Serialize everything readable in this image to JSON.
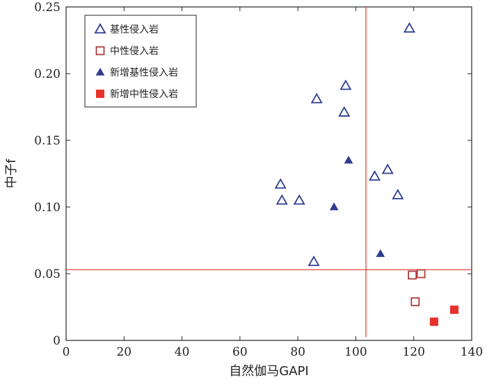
{
  "chart_data": {
    "type": "scatter",
    "xlabel": "自然伽马GAPI",
    "ylabel": "中子f",
    "xlim": [
      0,
      140
    ],
    "ylim": [
      0,
      0.25
    ],
    "x_ticks": [
      "0",
      "20",
      "40",
      "60",
      "80",
      "100",
      "120",
      "140"
    ],
    "y_ticks": [
      "0",
      "0.05",
      "0.10",
      "0.15",
      "0.20",
      "0.25"
    ],
    "grid": false,
    "legend_position": "top-left",
    "reference_lines": {
      "x": 103.5,
      "y": 0.053,
      "color": "#e8433b"
    },
    "series": [
      {
        "name": "基性侵入岩",
        "marker": "triangle-open",
        "color": "#2e3d8f",
        "points": [
          {
            "x": 74,
            "y": 0.117
          },
          {
            "x": 74.5,
            "y": 0.105
          },
          {
            "x": 80.5,
            "y": 0.105
          },
          {
            "x": 85.5,
            "y": 0.059
          },
          {
            "x": 86.5,
            "y": 0.181
          },
          {
            "x": 96,
            "y": 0.171
          },
          {
            "x": 96.5,
            "y": 0.191
          },
          {
            "x": 106.5,
            "y": 0.123
          },
          {
            "x": 111,
            "y": 0.128
          },
          {
            "x": 114.5,
            "y": 0.109
          },
          {
            "x": 118.5,
            "y": 0.234
          }
        ]
      },
      {
        "name": "中性侵入岩",
        "marker": "square-open",
        "color": "#b03a3a",
        "points": [
          {
            "x": 119.5,
            "y": 0.049
          },
          {
            "x": 122.5,
            "y": 0.05
          },
          {
            "x": 120.5,
            "y": 0.029
          }
        ]
      },
      {
        "name": "新增基性侵入岩",
        "marker": "triangle-filled",
        "color": "#2e3d8f",
        "points": [
          {
            "x": 92.5,
            "y": 0.1
          },
          {
            "x": 97.5,
            "y": 0.135
          },
          {
            "x": 108.5,
            "y": 0.065
          }
        ]
      },
      {
        "name": "新增中性侵入岩",
        "marker": "square-filled",
        "color": "#e8312a",
        "points": [
          {
            "x": 127,
            "y": 0.014
          },
          {
            "x": 134,
            "y": 0.023
          }
        ]
      }
    ]
  }
}
